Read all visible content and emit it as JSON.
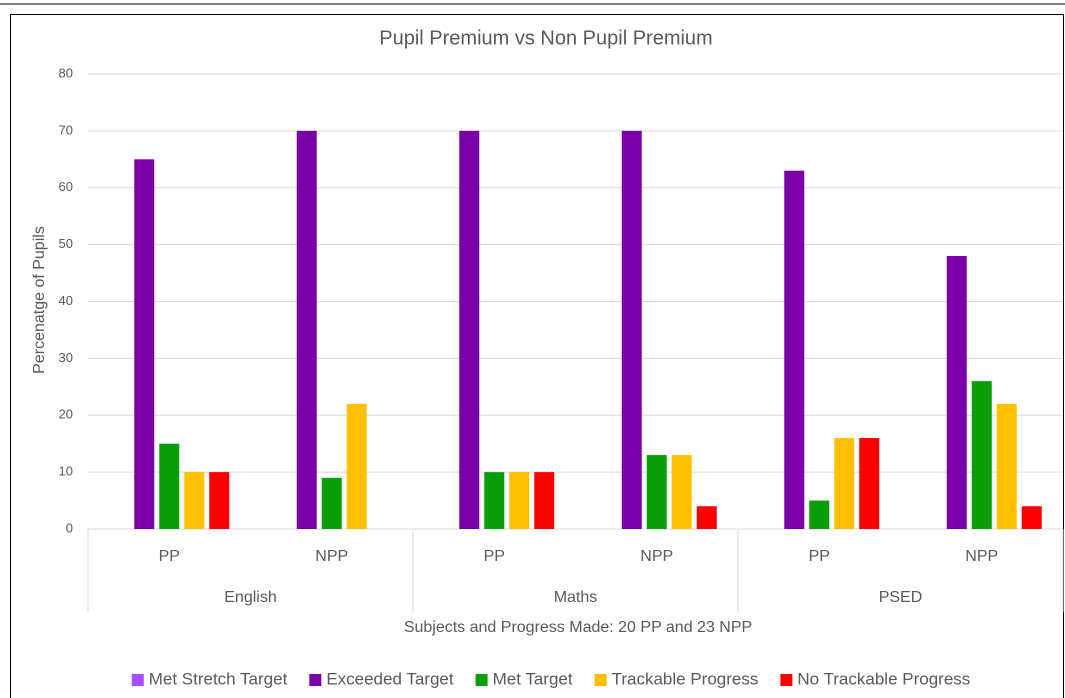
{
  "chart_data": {
    "type": "bar",
    "title": "Pupil Premium vs Non Pupil Premium",
    "xlabel": "Subjects and Progress Made: 20 PP and 23 NPP",
    "ylabel": "Percenatge of Pupils",
    "categories": [
      "PP",
      "NPP",
      "PP",
      "NPP",
      "PP",
      "NPP"
    ],
    "groups": [
      "English",
      "Maths",
      "PSED"
    ],
    "series": [
      {
        "name": "Met Stretch Target",
        "color": "#a64dff",
        "values": [
          0,
          0,
          0,
          0,
          0,
          0
        ]
      },
      {
        "name": "Exceeded Target",
        "color": "#7a00a8",
        "values": [
          65,
          70,
          70,
          70,
          63,
          48
        ]
      },
      {
        "name": "Met Target",
        "color": "#0a9e0a",
        "values": [
          15,
          9,
          10,
          13,
          5,
          26
        ]
      },
      {
        "name": "Trackable Progress",
        "color": "#ffc000",
        "values": [
          10,
          22,
          10,
          13,
          16,
          22
        ]
      },
      {
        "name": "No Trackable Progress",
        "color": "#ff0000",
        "values": [
          10,
          0,
          10,
          4,
          16,
          4
        ]
      }
    ],
    "ylim": [
      0,
      80
    ],
    "yticks": [
      0,
      10,
      20,
      30,
      40,
      50,
      60,
      70,
      80
    ],
    "grid": true,
    "legend": "bottom"
  }
}
